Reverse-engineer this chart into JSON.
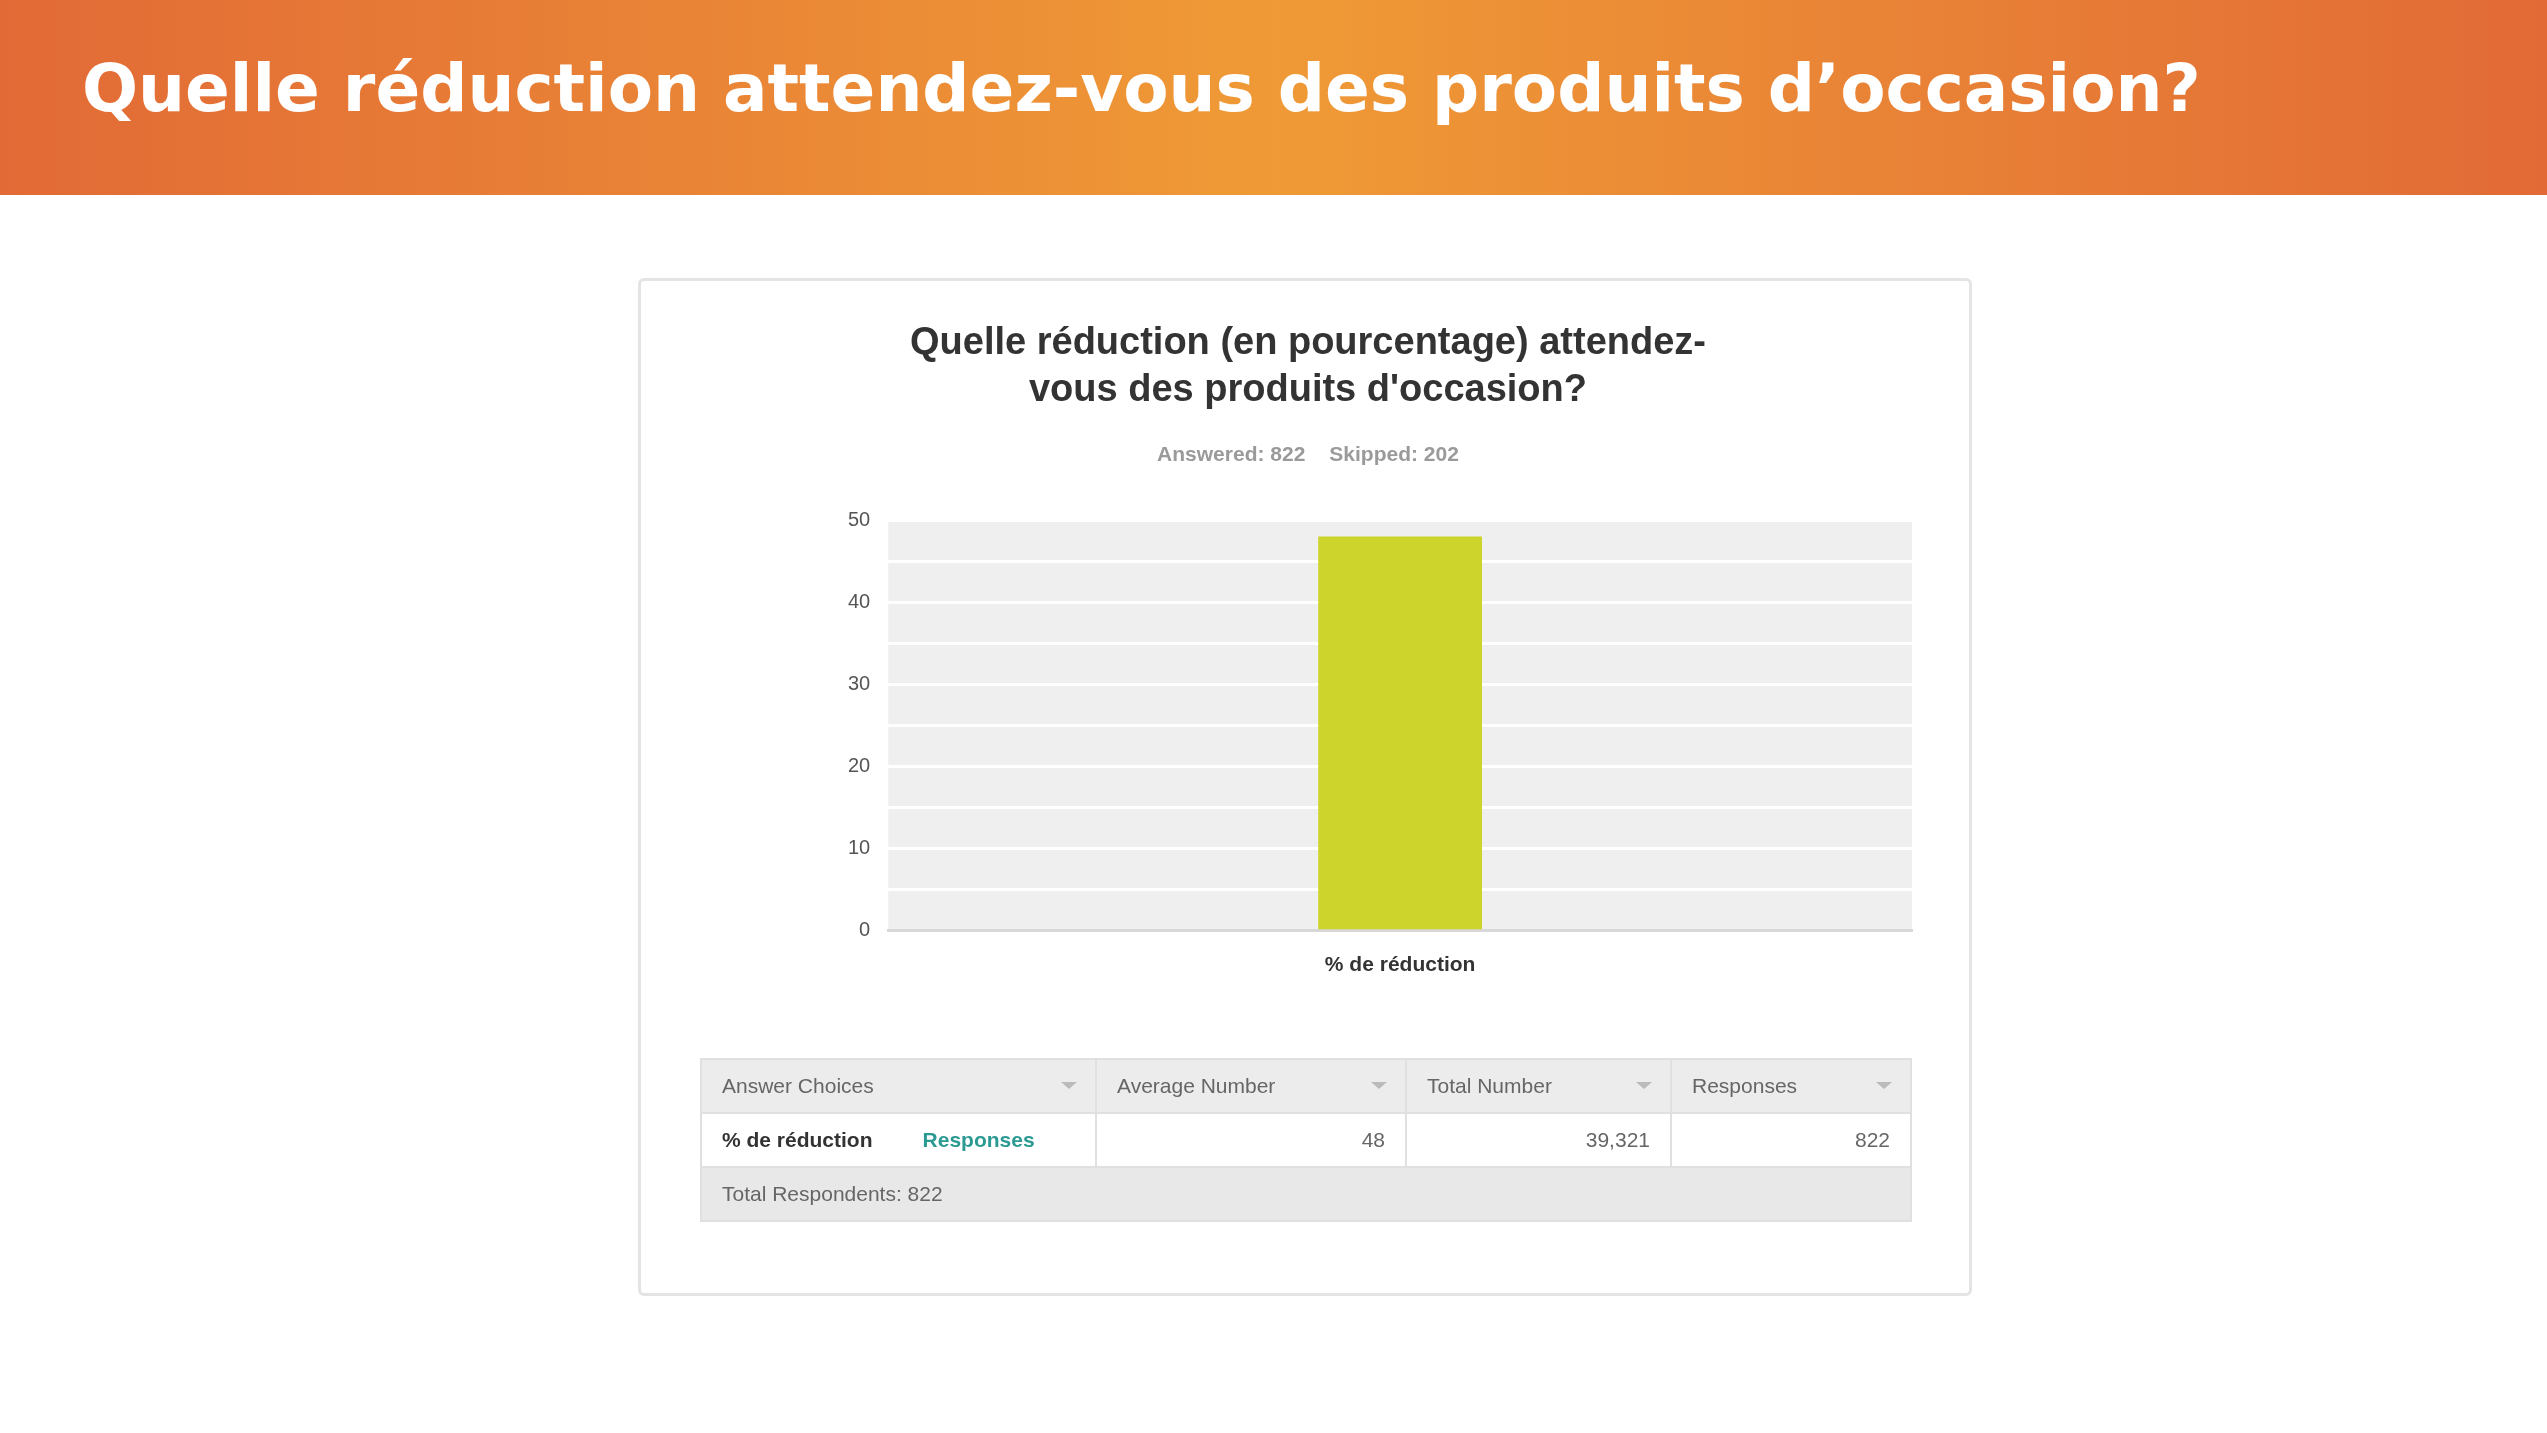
{
  "chart_data": {
    "type": "bar",
    "title": "Quelle réduction attendez-vous des produits d’occasion?",
    "subtitle": "Quelle réduction (en pourcentage) attendez-vous des produits d'occasion?",
    "categories": [
      "% de réduction"
    ],
    "values": [
      48
    ],
    "color": "#cdd42b",
    "ylim": [
      0,
      50
    ],
    "yticks": [
      0,
      {
        "value": 5,
        "label": null
      },
      10,
      {
        "value": 15,
        "label": null
      },
      20,
      {
        "value": 25,
        "label": null
      },
      30,
      {
        "value": 35,
        "label": null
      },
      40,
      {
        "value": 45,
        "label": null
      },
      50
    ],
    "grid": "y",
    "legend": false,
    "annotations": [
      "Answered: 822",
      "Skipped: 202",
      "Answer Choices",
      "Average Number",
      "Total Number",
      "Responses",
      "Responses",
      "48",
      "39,321",
      "822",
      "Total Respondents: 822"
    ]
  }
}
